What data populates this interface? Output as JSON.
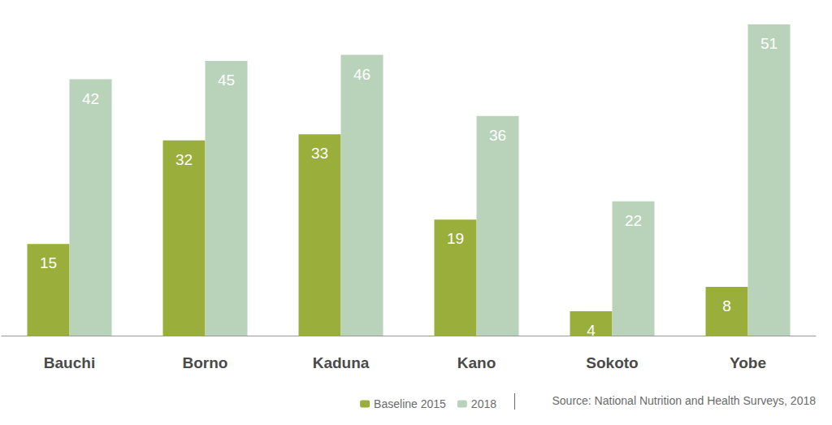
{
  "chart_data": {
    "type": "bar",
    "categories": [
      "Bauchi",
      "Borno",
      "Kaduna",
      "Kano",
      "Sokoto",
      "Yobe"
    ],
    "series": [
      {
        "name": "Baseline 2015",
        "color": "#9aae3b",
        "values": [
          15,
          32,
          33,
          19,
          4,
          8
        ]
      },
      {
        "name": "2018",
        "color": "#b8d3b9",
        "values": [
          42,
          45,
          46,
          36,
          22,
          51
        ]
      }
    ],
    "ylim": [
      0,
      51
    ],
    "grid": false,
    "legend": "bottom right",
    "data_labels": true,
    "tick_labels": "x",
    "annotation": "Source: National Nutrition and Health Surveys, 2018"
  }
}
